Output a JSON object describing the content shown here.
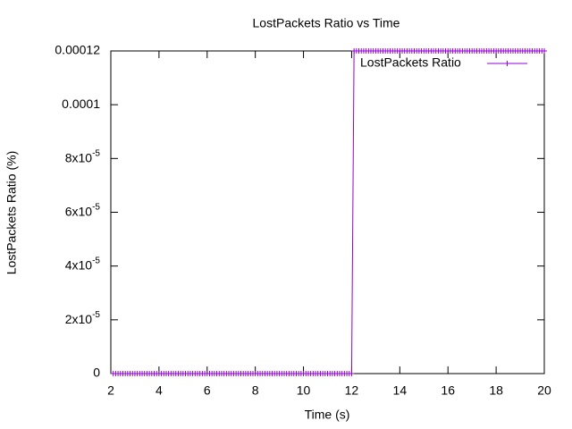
{
  "chart_data": {
    "type": "line",
    "title": "LostPackets Ratio vs Time",
    "x_label": "Time (s)",
    "y_label": "LostPackets Ratio (%)",
    "x": [
      2.1,
      2.2,
      2.3,
      2.4,
      2.5,
      2.6,
      2.7,
      2.8,
      2.9,
      3.0,
      3.1,
      3.2,
      3.3,
      3.4,
      3.5,
      3.6,
      3.7,
      3.8,
      3.9,
      4.0,
      4.1,
      4.2,
      4.3,
      4.4,
      4.5,
      4.6,
      4.7,
      4.8,
      4.9,
      5.0,
      5.1,
      5.2,
      5.3,
      5.4,
      5.5,
      5.6,
      5.7,
      5.8,
      5.9,
      6.0,
      6.1,
      6.2,
      6.3,
      6.4,
      6.5,
      6.6,
      6.7,
      6.8,
      6.9,
      7.0,
      7.1,
      7.2,
      7.3,
      7.4,
      7.5,
      7.6,
      7.7,
      7.8,
      7.9,
      8.0,
      8.1,
      8.2,
      8.3,
      8.4,
      8.5,
      8.6,
      8.7,
      8.8,
      8.9,
      9.0,
      9.1,
      9.2,
      9.3,
      9.4,
      9.5,
      9.6,
      9.7,
      9.8,
      9.9,
      10.0,
      10.1,
      10.2,
      10.3,
      10.4,
      10.5,
      10.6,
      10.7,
      10.8,
      10.9,
      11.0,
      11.1,
      11.2,
      11.3,
      11.4,
      11.5,
      11.6,
      11.7,
      11.8,
      11.9,
      12.0,
      12.1,
      12.2,
      12.3,
      12.4,
      12.5,
      12.6,
      12.7,
      12.8,
      12.9,
      13.0,
      13.1,
      13.2,
      13.3,
      13.4,
      13.5,
      13.6,
      13.7,
      13.8,
      13.9,
      14.0,
      14.1,
      14.2,
      14.3,
      14.4,
      14.5,
      14.6,
      14.7,
      14.8,
      14.9,
      15.0,
      15.1,
      15.2,
      15.3,
      15.4,
      15.5,
      15.6,
      15.7,
      15.8,
      15.9,
      16.0,
      16.1,
      16.2,
      16.3,
      16.4,
      16.5,
      16.6,
      16.7,
      16.8,
      16.9,
      17.0,
      17.1,
      17.2,
      17.3,
      17.4,
      17.5,
      17.6,
      17.7,
      17.8,
      17.9,
      18.0,
      18.1,
      18.2,
      18.3,
      18.4,
      18.5,
      18.6,
      18.7,
      18.8,
      18.9,
      19.0,
      19.1,
      19.2,
      19.3,
      19.4,
      19.5,
      19.6,
      19.7,
      19.8,
      19.9,
      20.0
    ],
    "series": [
      {
        "name": "LostPackets Ratio",
        "color": "#9400d3",
        "values": [
          0,
          0,
          0,
          0,
          0,
          0,
          0,
          0,
          0,
          0,
          0,
          0,
          0,
          0,
          0,
          0,
          0,
          0,
          0,
          0,
          0,
          0,
          0,
          0,
          0,
          0,
          0,
          0,
          0,
          0,
          0,
          0,
          0,
          0,
          0,
          0,
          0,
          0,
          0,
          0,
          0,
          0,
          0,
          0,
          0,
          0,
          0,
          0,
          0,
          0,
          0,
          0,
          0,
          0,
          0,
          0,
          0,
          0,
          0,
          0,
          0,
          0,
          0,
          0,
          0,
          0,
          0,
          0,
          0,
          0,
          0,
          0,
          0,
          0,
          0,
          0,
          0,
          0,
          0,
          0,
          0,
          0,
          0,
          0,
          0,
          0,
          0,
          0,
          0,
          0,
          0,
          0,
          0,
          0,
          0,
          0,
          0,
          0,
          0,
          0,
          0.00012,
          0.00012,
          0.00012,
          0.00012,
          0.00012,
          0.00012,
          0.00012,
          0.00012,
          0.00012,
          0.00012,
          0.00012,
          0.00012,
          0.00012,
          0.00012,
          0.00012,
          0.00012,
          0.00012,
          0.00012,
          0.00012,
          0.00012,
          0.00012,
          0.00012,
          0.00012,
          0.00012,
          0.00012,
          0.00012,
          0.00012,
          0.00012,
          0.00012,
          0.00012,
          0.00012,
          0.00012,
          0.00012,
          0.00012,
          0.00012,
          0.00012,
          0.00012,
          0.00012,
          0.00012,
          0.00012,
          0.00012,
          0.00012,
          0.00012,
          0.00012,
          0.00012,
          0.00012,
          0.00012,
          0.00012,
          0.00012,
          0.00012,
          0.00012,
          0.00012,
          0.00012,
          0.00012,
          0.00012,
          0.00012,
          0.00012,
          0.00012,
          0.00012,
          0.00012,
          0.00012,
          0.00012,
          0.00012,
          0.00012,
          0.00012,
          0.00012,
          0.00012,
          0.00012,
          0.00012,
          0.00012,
          0.00012,
          0.00012,
          0.00012,
          0.00012,
          0.00012,
          0.00012,
          0.00012,
          0.00012,
          0.00012,
          0.00012
        ]
      }
    ],
    "xlim": [
      2,
      20
    ],
    "xticks": [
      2,
      4,
      6,
      8,
      10,
      12,
      14,
      16,
      18,
      20
    ],
    "ylim": [
      0,
      0.00012
    ],
    "yticks": [
      0,
      {
        "value": 2e-05,
        "label": "2x10-5"
      },
      {
        "value": 4e-05,
        "label": "4x10-5"
      },
      {
        "value": 6e-05,
        "label": "6x10-5"
      },
      {
        "value": 8e-05,
        "label": "8x10-5"
      },
      0.0001,
      0.00012
    ],
    "legend": "top-right"
  }
}
